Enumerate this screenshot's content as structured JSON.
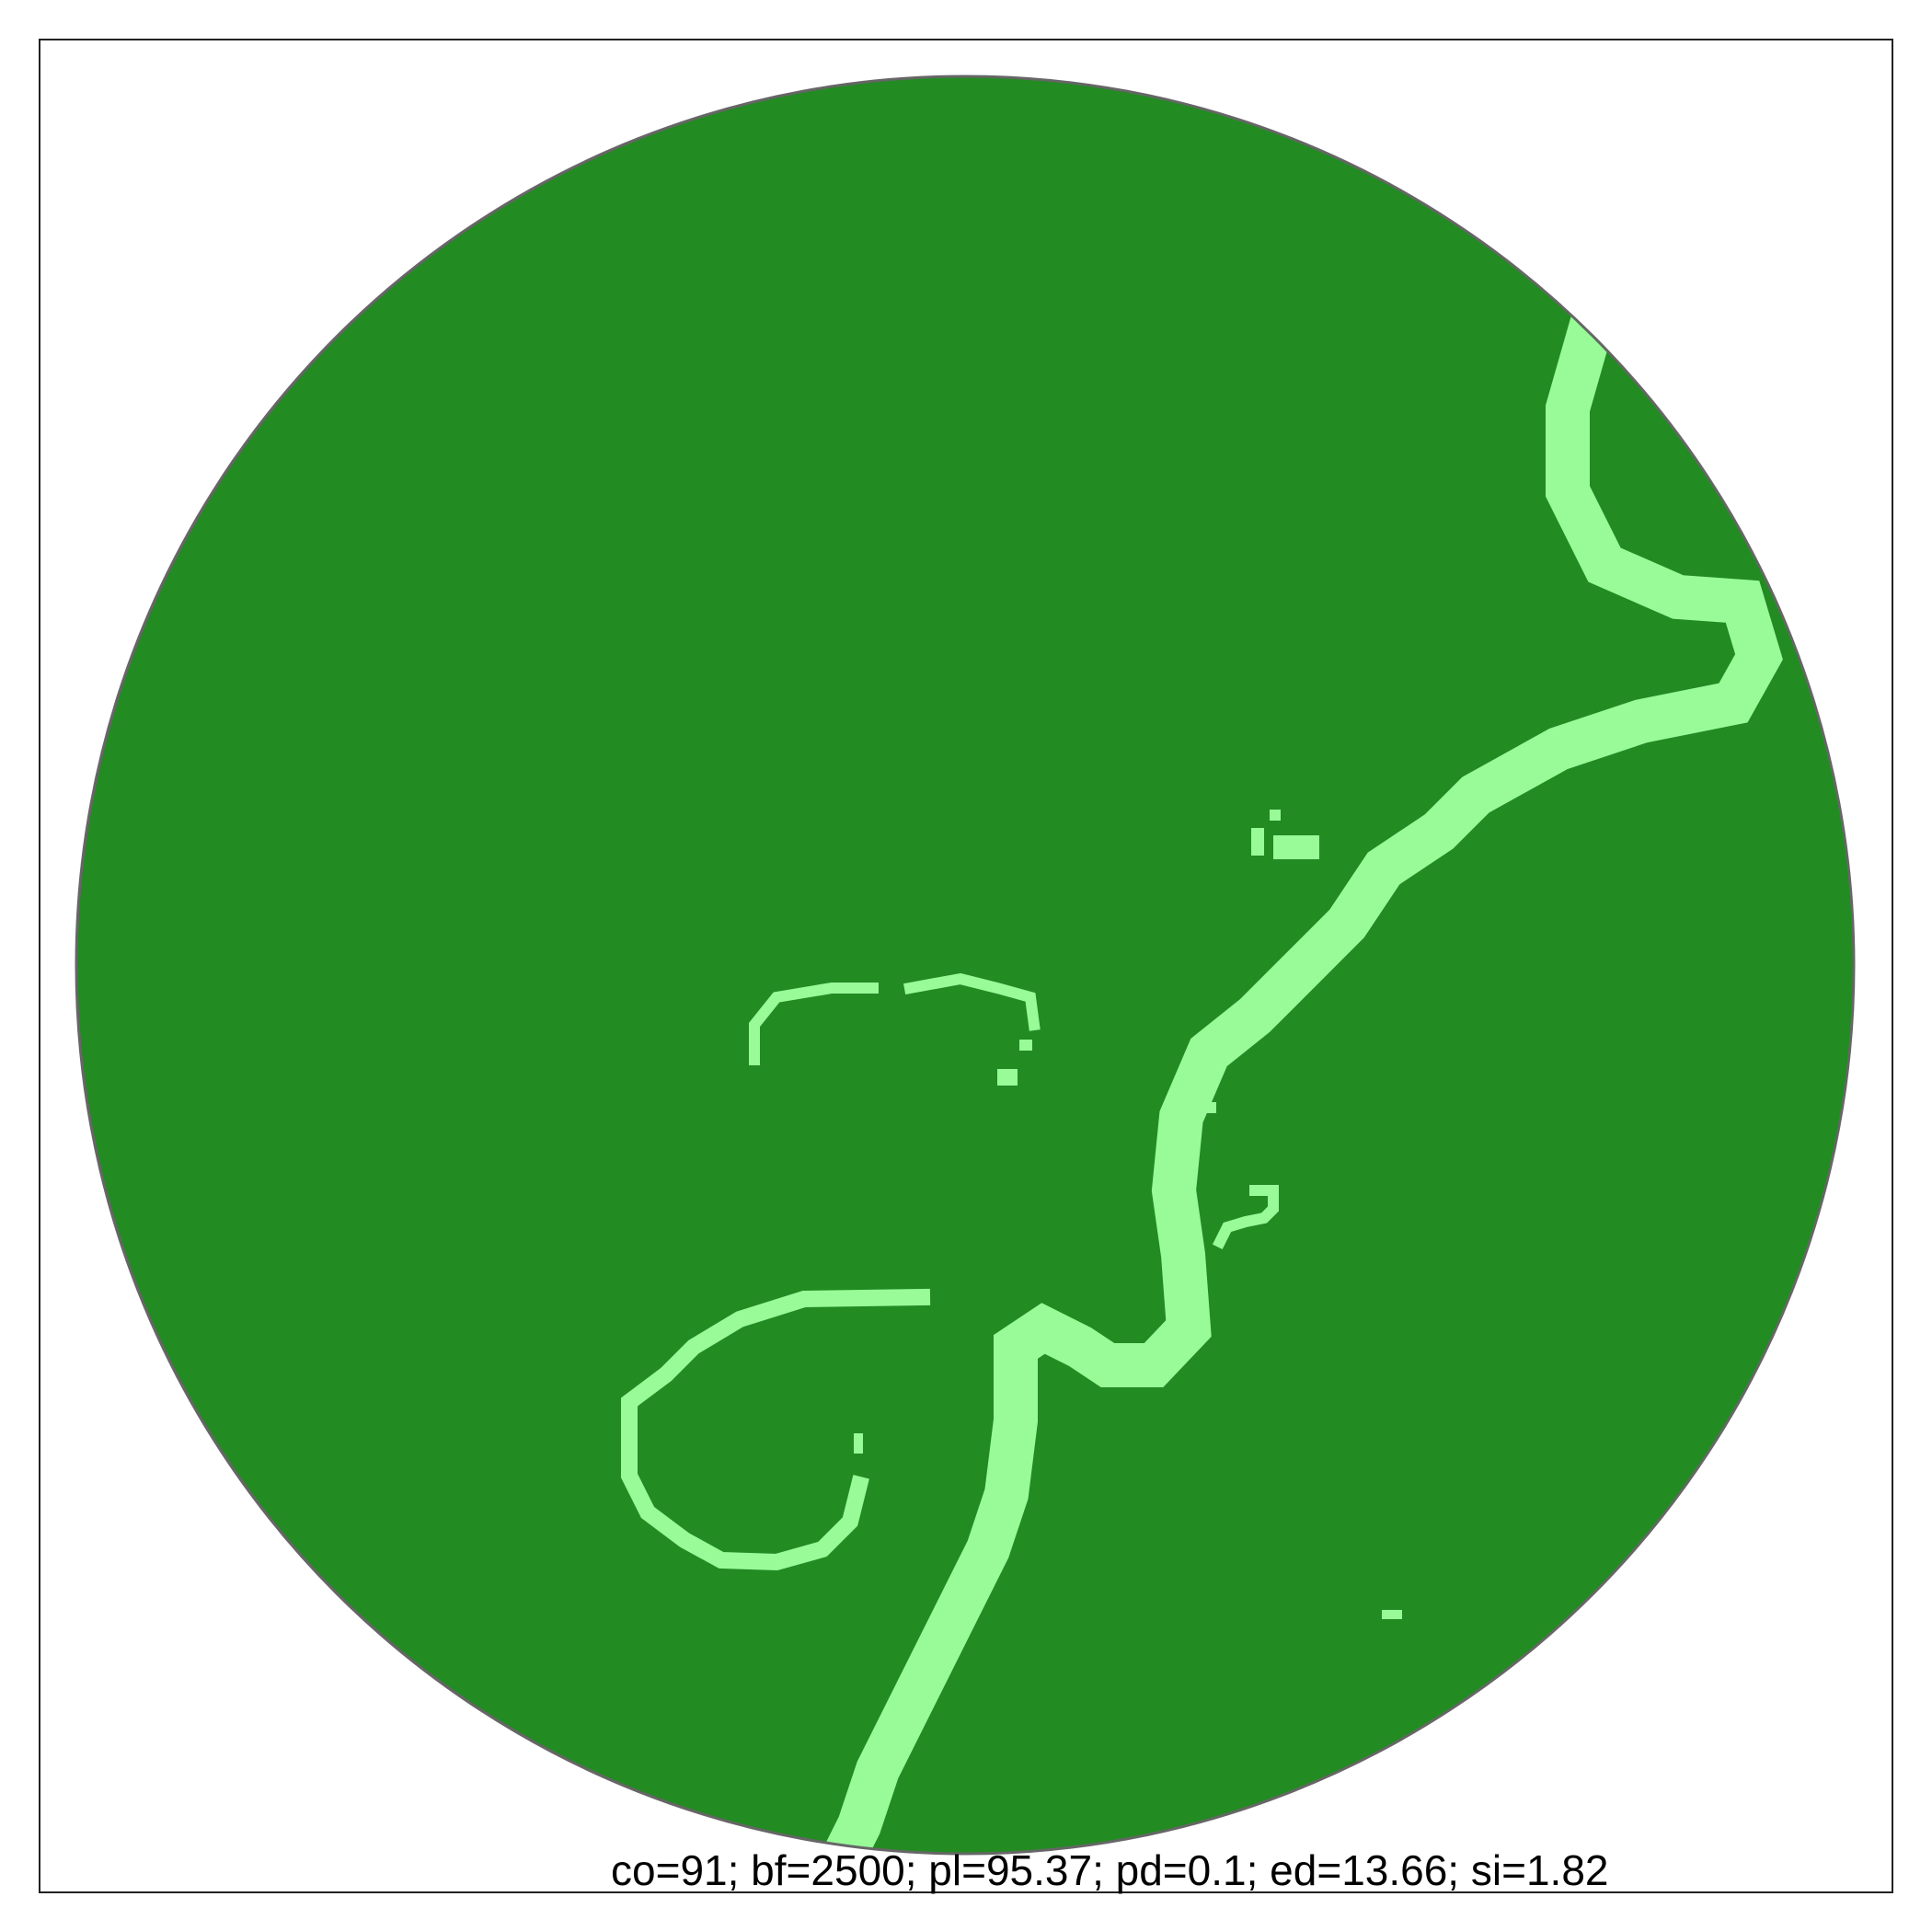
{
  "map": {
    "colors": {
      "landcover": "#228b22",
      "river": "#98fb98",
      "boundary": "#666666",
      "frame": "#222222",
      "background": "#ffffff"
    },
    "features": [
      "circular-study-area",
      "landcover-patch",
      "river-corridor",
      "river-oxbow-loop"
    ]
  },
  "caption": {
    "metrics_text": "co=91; bf=2500; pl=95.37; pd=0.1; ed=13.66; si=1.82"
  }
}
